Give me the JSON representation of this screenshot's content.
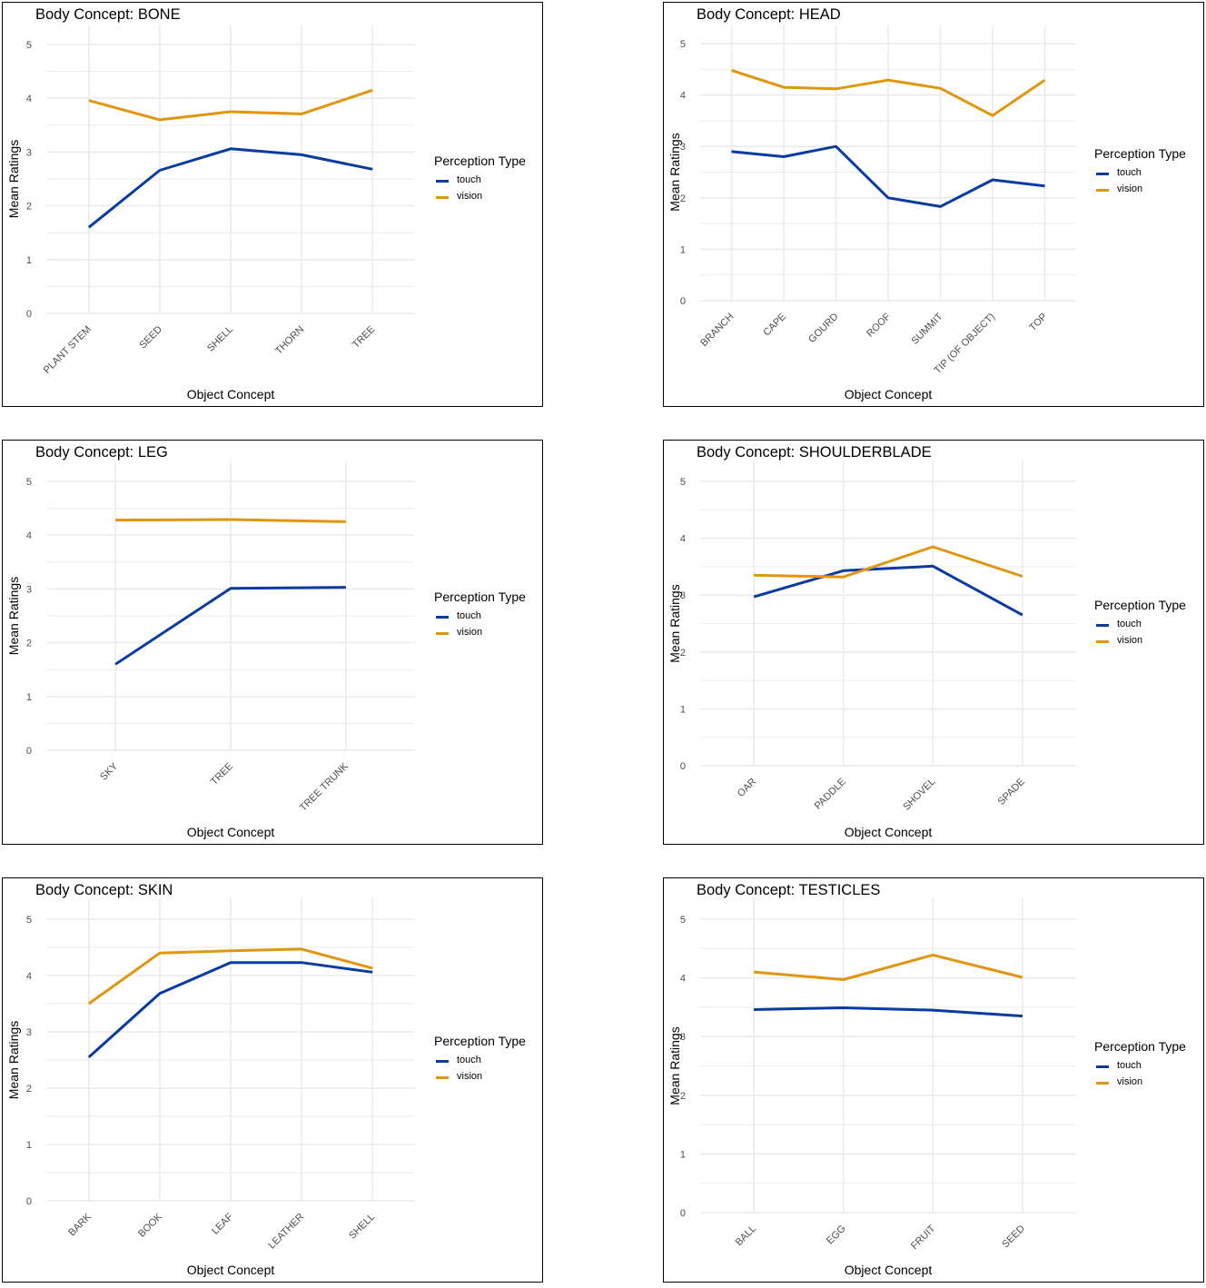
{
  "colors": {
    "touch": "#0a3ba1",
    "vision": "#e0960f",
    "grid": "#ebebeb",
    "tick": "#4d4d4d"
  },
  "chart_data": [
    {
      "type": "line",
      "title": "Body Concept: BONE",
      "xlabel": "Object Concept",
      "ylabel": "Mean Ratings",
      "categories": [
        "PLANT STEM",
        "SEED",
        "SHELL",
        "THORN",
        "TREE"
      ],
      "ylim": [
        0,
        5
      ],
      "yticks": [
        0,
        1,
        2,
        3,
        4,
        5
      ],
      "grid": true,
      "legend_title": "Perception Type",
      "legend_position": "right",
      "series": [
        {
          "name": "touch",
          "values": [
            1.6,
            2.66,
            3.06,
            2.95,
            2.68
          ]
        },
        {
          "name": "vision",
          "values": [
            3.96,
            3.6,
            3.75,
            3.71,
            4.15
          ]
        }
      ]
    },
    {
      "type": "line",
      "title": "Body Concept: HEAD",
      "xlabel": "Object Concept",
      "ylabel": "Mean Ratings",
      "categories": [
        "BRANCH",
        "CAPE",
        "GOURD",
        "ROOF",
        "SUMMIT",
        "TIP (OF OBJECT)",
        "TOP"
      ],
      "ylim": [
        0,
        5
      ],
      "yticks": [
        0,
        1,
        2,
        3,
        4,
        5
      ],
      "grid": true,
      "legend_title": "Perception Type",
      "legend_position": "right",
      "series": [
        {
          "name": "touch",
          "values": [
            2.9,
            2.8,
            3.0,
            2.0,
            1.83,
            2.35,
            2.23
          ]
        },
        {
          "name": "vision",
          "values": [
            4.48,
            4.15,
            4.12,
            4.29,
            4.13,
            3.6,
            4.29
          ]
        }
      ]
    },
    {
      "type": "line",
      "title": "Body Concept: LEG",
      "xlabel": "Object Concept",
      "ylabel": "Mean Ratings",
      "categories": [
        "SKY",
        "TREE",
        "TREE TRUNK"
      ],
      "ylim": [
        0,
        5
      ],
      "yticks": [
        0,
        1,
        2,
        3,
        4,
        5
      ],
      "grid": true,
      "legend_title": "Perception Type",
      "legend_position": "right",
      "series": [
        {
          "name": "touch",
          "values": [
            1.6,
            3.01,
            3.03
          ]
        },
        {
          "name": "vision",
          "values": [
            4.28,
            4.29,
            4.25
          ]
        }
      ]
    },
    {
      "type": "line",
      "title": "Body Concept: SHOULDERBLADE",
      "xlabel": "Object Concept",
      "ylabel": "Mean Ratings",
      "categories": [
        "OAR",
        "PADDLE",
        "SHOVEL",
        "SPADE"
      ],
      "ylim": [
        0,
        5
      ],
      "yticks": [
        0,
        1,
        2,
        3,
        4,
        5
      ],
      "grid": true,
      "legend_title": "Perception Type",
      "legend_position": "right",
      "series": [
        {
          "name": "touch",
          "values": [
            2.97,
            3.43,
            3.51,
            2.65
          ]
        },
        {
          "name": "vision",
          "values": [
            3.35,
            3.32,
            3.85,
            3.33
          ]
        }
      ]
    },
    {
      "type": "line",
      "title": "Body Concept: SKIN",
      "xlabel": "Object Concept",
      "ylabel": "Mean Ratings",
      "categories": [
        "BARK",
        "BOOK",
        "LEAF",
        "LEATHER",
        "SHELL"
      ],
      "ylim": [
        0,
        5
      ],
      "yticks": [
        0,
        1,
        2,
        3,
        4,
        5
      ],
      "grid": true,
      "legend_title": "Perception Type",
      "legend_position": "right",
      "series": [
        {
          "name": "touch",
          "values": [
            2.55,
            3.68,
            4.23,
            4.23,
            4.06
          ]
        },
        {
          "name": "vision",
          "values": [
            3.5,
            4.4,
            4.44,
            4.47,
            4.13
          ]
        }
      ]
    },
    {
      "type": "line",
      "title": "Body Concept: TESTICLES",
      "xlabel": "Object Concept",
      "ylabel": "Mean Ratings",
      "categories": [
        "BALL",
        "EGG",
        "FRUIT",
        "SEED"
      ],
      "ylim": [
        0,
        5
      ],
      "yticks": [
        0,
        1,
        2,
        3,
        4,
        5
      ],
      "grid": true,
      "legend_title": "Perception Type",
      "legend_position": "right",
      "series": [
        {
          "name": "touch",
          "values": [
            3.46,
            3.49,
            3.45,
            3.35
          ]
        },
        {
          "name": "vision",
          "values": [
            4.1,
            3.97,
            4.39,
            4.01
          ]
        }
      ]
    }
  ]
}
